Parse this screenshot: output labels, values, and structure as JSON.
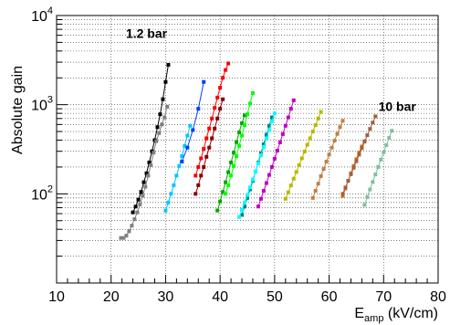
{
  "chart_data": {
    "type": "scatter",
    "title": "",
    "xlabel": {
      "main": "E",
      "sub": "amp",
      "rest": " (kV/cm)"
    },
    "ylabel": "Absolute gain",
    "xlim": [
      10,
      80
    ],
    "ylim": [
      10,
      10000
    ],
    "yscale": "log",
    "grid": true,
    "x_ticks": [
      10,
      20,
      30,
      40,
      50,
      60,
      70,
      80
    ],
    "x_tick_labels": [
      "10",
      "20",
      "30",
      "40",
      "50",
      "60",
      "70",
      "80"
    ],
    "y_ticks": [
      100,
      1000,
      10000
    ],
    "y_tick_labels": [
      {
        "base": "10",
        "exp": "2"
      },
      {
        "base": "10",
        "exp": "3"
      },
      {
        "base": "10",
        "exp": "4"
      }
    ],
    "annotations": [
      {
        "text": "1.2 bar",
        "x": 26.5,
        "y": 5600
      },
      {
        "text": "10 bar",
        "x": 72.5,
        "y": 850
      }
    ],
    "series": [
      {
        "color": "#000000",
        "marker": "square",
        "x": [
          24.0,
          24.5,
          25.0,
          25.5,
          26.0,
          26.5,
          27.0,
          27.5,
          28.0,
          28.5,
          29.0,
          29.5,
          30.0,
          30.5
        ],
        "y": [
          62,
          72,
          86,
          105,
          135,
          170,
          225,
          300,
          400,
          560,
          780,
          1150,
          1800,
          2800
        ]
      },
      {
        "color": "#808080",
        "marker": "square",
        "x": [
          21.8,
          22.3,
          22.8,
          23.3,
          23.8,
          24.3,
          24.8,
          25.3,
          25.8,
          26.3,
          26.8,
          27.3,
          27.8,
          28.3,
          28.8,
          29.3,
          29.8,
          30.3
        ],
        "y": [
          32,
          32,
          34,
          38,
          44,
          52,
          62,
          76,
          95,
          120,
          160,
          210,
          290,
          390,
          480,
          600,
          720,
          950
        ]
      },
      {
        "color": "#00c8ff",
        "marker": "square",
        "x": [
          30.0,
          30.5,
          31.0,
          31.5,
          32.0,
          32.5,
          33.0,
          33.5,
          34.0,
          34.5
        ],
        "y": [
          65,
          80,
          100,
          125,
          160,
          205,
          265,
          345,
          450,
          580
        ]
      },
      {
        "color": "#0040ff",
        "marker": "square",
        "x": [
          33.0,
          34.0,
          35.0,
          36.0,
          37.0
        ],
        "y": [
          230,
          330,
          520,
          900,
          1800
        ]
      },
      {
        "color": "#ff0000",
        "marker": "square",
        "x": [
          35.5,
          36.0,
          36.5,
          37.0,
          37.5,
          38.0,
          38.5,
          39.0,
          39.5,
          40.0,
          40.5,
          41.0,
          41.5
        ],
        "y": [
          160,
          200,
          250,
          320,
          420,
          540,
          700,
          920,
          1200,
          1550,
          2000,
          2450,
          2900
        ]
      },
      {
        "color": "#8b0000",
        "marker": "square",
        "x": [
          35.5,
          36.0,
          36.5,
          37.0,
          37.5,
          38.0,
          38.5,
          39.0,
          39.5,
          40.0,
          40.5
        ],
        "y": [
          100,
          125,
          160,
          200,
          260,
          330,
          420,
          540,
          700,
          900,
          1150
        ]
      },
      {
        "color": "#00a800",
        "marker": "square",
        "x": [
          39.5,
          40.0,
          40.5,
          41.0,
          41.5,
          42.0,
          42.5,
          43.0,
          43.5,
          44.0,
          44.5
        ],
        "y": [
          65,
          82,
          105,
          135,
          175,
          225,
          290,
          380,
          490,
          620,
          760
        ]
      },
      {
        "color": "#00ff00",
        "marker": "square",
        "x": [
          41.0,
          41.5,
          42.0,
          42.5,
          43.0,
          43.5,
          44.0,
          44.5,
          45.0,
          45.5,
          46.0
        ],
        "y": [
          100,
          125,
          160,
          205,
          265,
          345,
          450,
          590,
          780,
          1030,
          1350
        ]
      },
      {
        "color": "#008080",
        "marker": "square",
        "x": [
          44.0,
          44.5,
          45.0,
          45.5,
          46.0,
          46.5,
          47.0,
          47.5,
          48.0,
          48.5,
          49.0,
          49.5
        ],
        "y": [
          58,
          72,
          90,
          112,
          140,
          178,
          225,
          285,
          360,
          460,
          580,
          720
        ]
      },
      {
        "color": "#00ffff",
        "marker": "square",
        "x": [
          43.5,
          44.0,
          44.5,
          45.0,
          45.5,
          46.0,
          46.5,
          47.0,
          47.5,
          48.0,
          48.5,
          49.0,
          49.5,
          50.0
        ],
        "y": [
          55,
          66,
          80,
          97,
          118,
          145,
          178,
          220,
          270,
          335,
          420,
          520,
          650,
          800
        ]
      },
      {
        "color": "#c000c0",
        "marker": "square",
        "x": [
          47.0,
          47.5,
          48.0,
          48.5,
          49.0,
          49.5,
          50.0,
          50.5,
          51.0,
          51.5,
          52.0,
          52.5,
          53.0,
          53.5
        ],
        "y": [
          72,
          88,
          108,
          132,
          163,
          200,
          248,
          305,
          378,
          468,
          580,
          720,
          900,
          1120
        ]
      },
      {
        "color": "#b8b800",
        "marker": "square",
        "x": [
          52.0,
          52.5,
          53.0,
          53.5,
          54.0,
          54.5,
          55.0,
          55.5,
          56.0,
          56.5,
          57.0,
          57.5,
          58.0,
          58.5
        ],
        "y": [
          88,
          104,
          124,
          148,
          176,
          210,
          250,
          298,
          355,
          420,
          500,
          590,
          700,
          830
        ]
      },
      {
        "color": "#c08040",
        "marker": "square",
        "x": [
          57.0,
          57.5,
          58.0,
          58.5,
          59.0,
          59.5,
          60.0,
          60.5,
          61.0,
          61.5,
          62.0,
          62.5
        ],
        "y": [
          90,
          108,
          130,
          158,
          190,
          230,
          275,
          330,
          395,
          470,
          560,
          660
        ]
      },
      {
        "color": "#d07000",
        "marker": "square",
        "x": [
          62.5,
          63.0,
          63.5,
          64.0,
          64.5,
          65.0,
          65.5,
          66.0,
          66.5
        ],
        "y": [
          95,
          115,
          140,
          170,
          205,
          245,
          290,
          340,
          390
        ]
      },
      {
        "color": "#a06040",
        "marker": "square",
        "x": [
          62.5,
          63.0,
          63.5,
          64.0,
          64.5,
          65.0,
          65.5,
          66.0,
          66.5,
          67.0,
          67.5,
          68.0,
          68.5
        ],
        "y": [
          100,
          118,
          140,
          166,
          196,
          232,
          275,
          325,
          385,
          455,
          535,
          630,
          740
        ]
      },
      {
        "color": "#80c0a0",
        "marker": "square",
        "x": [
          66.5,
          67.0,
          67.5,
          68.0,
          68.5,
          69.0,
          69.5,
          70.0,
          70.5,
          71.0,
          71.5
        ],
        "y": [
          75,
          92,
          112,
          136,
          165,
          200,
          242,
          292,
          352,
          424,
          510
        ]
      }
    ]
  }
}
